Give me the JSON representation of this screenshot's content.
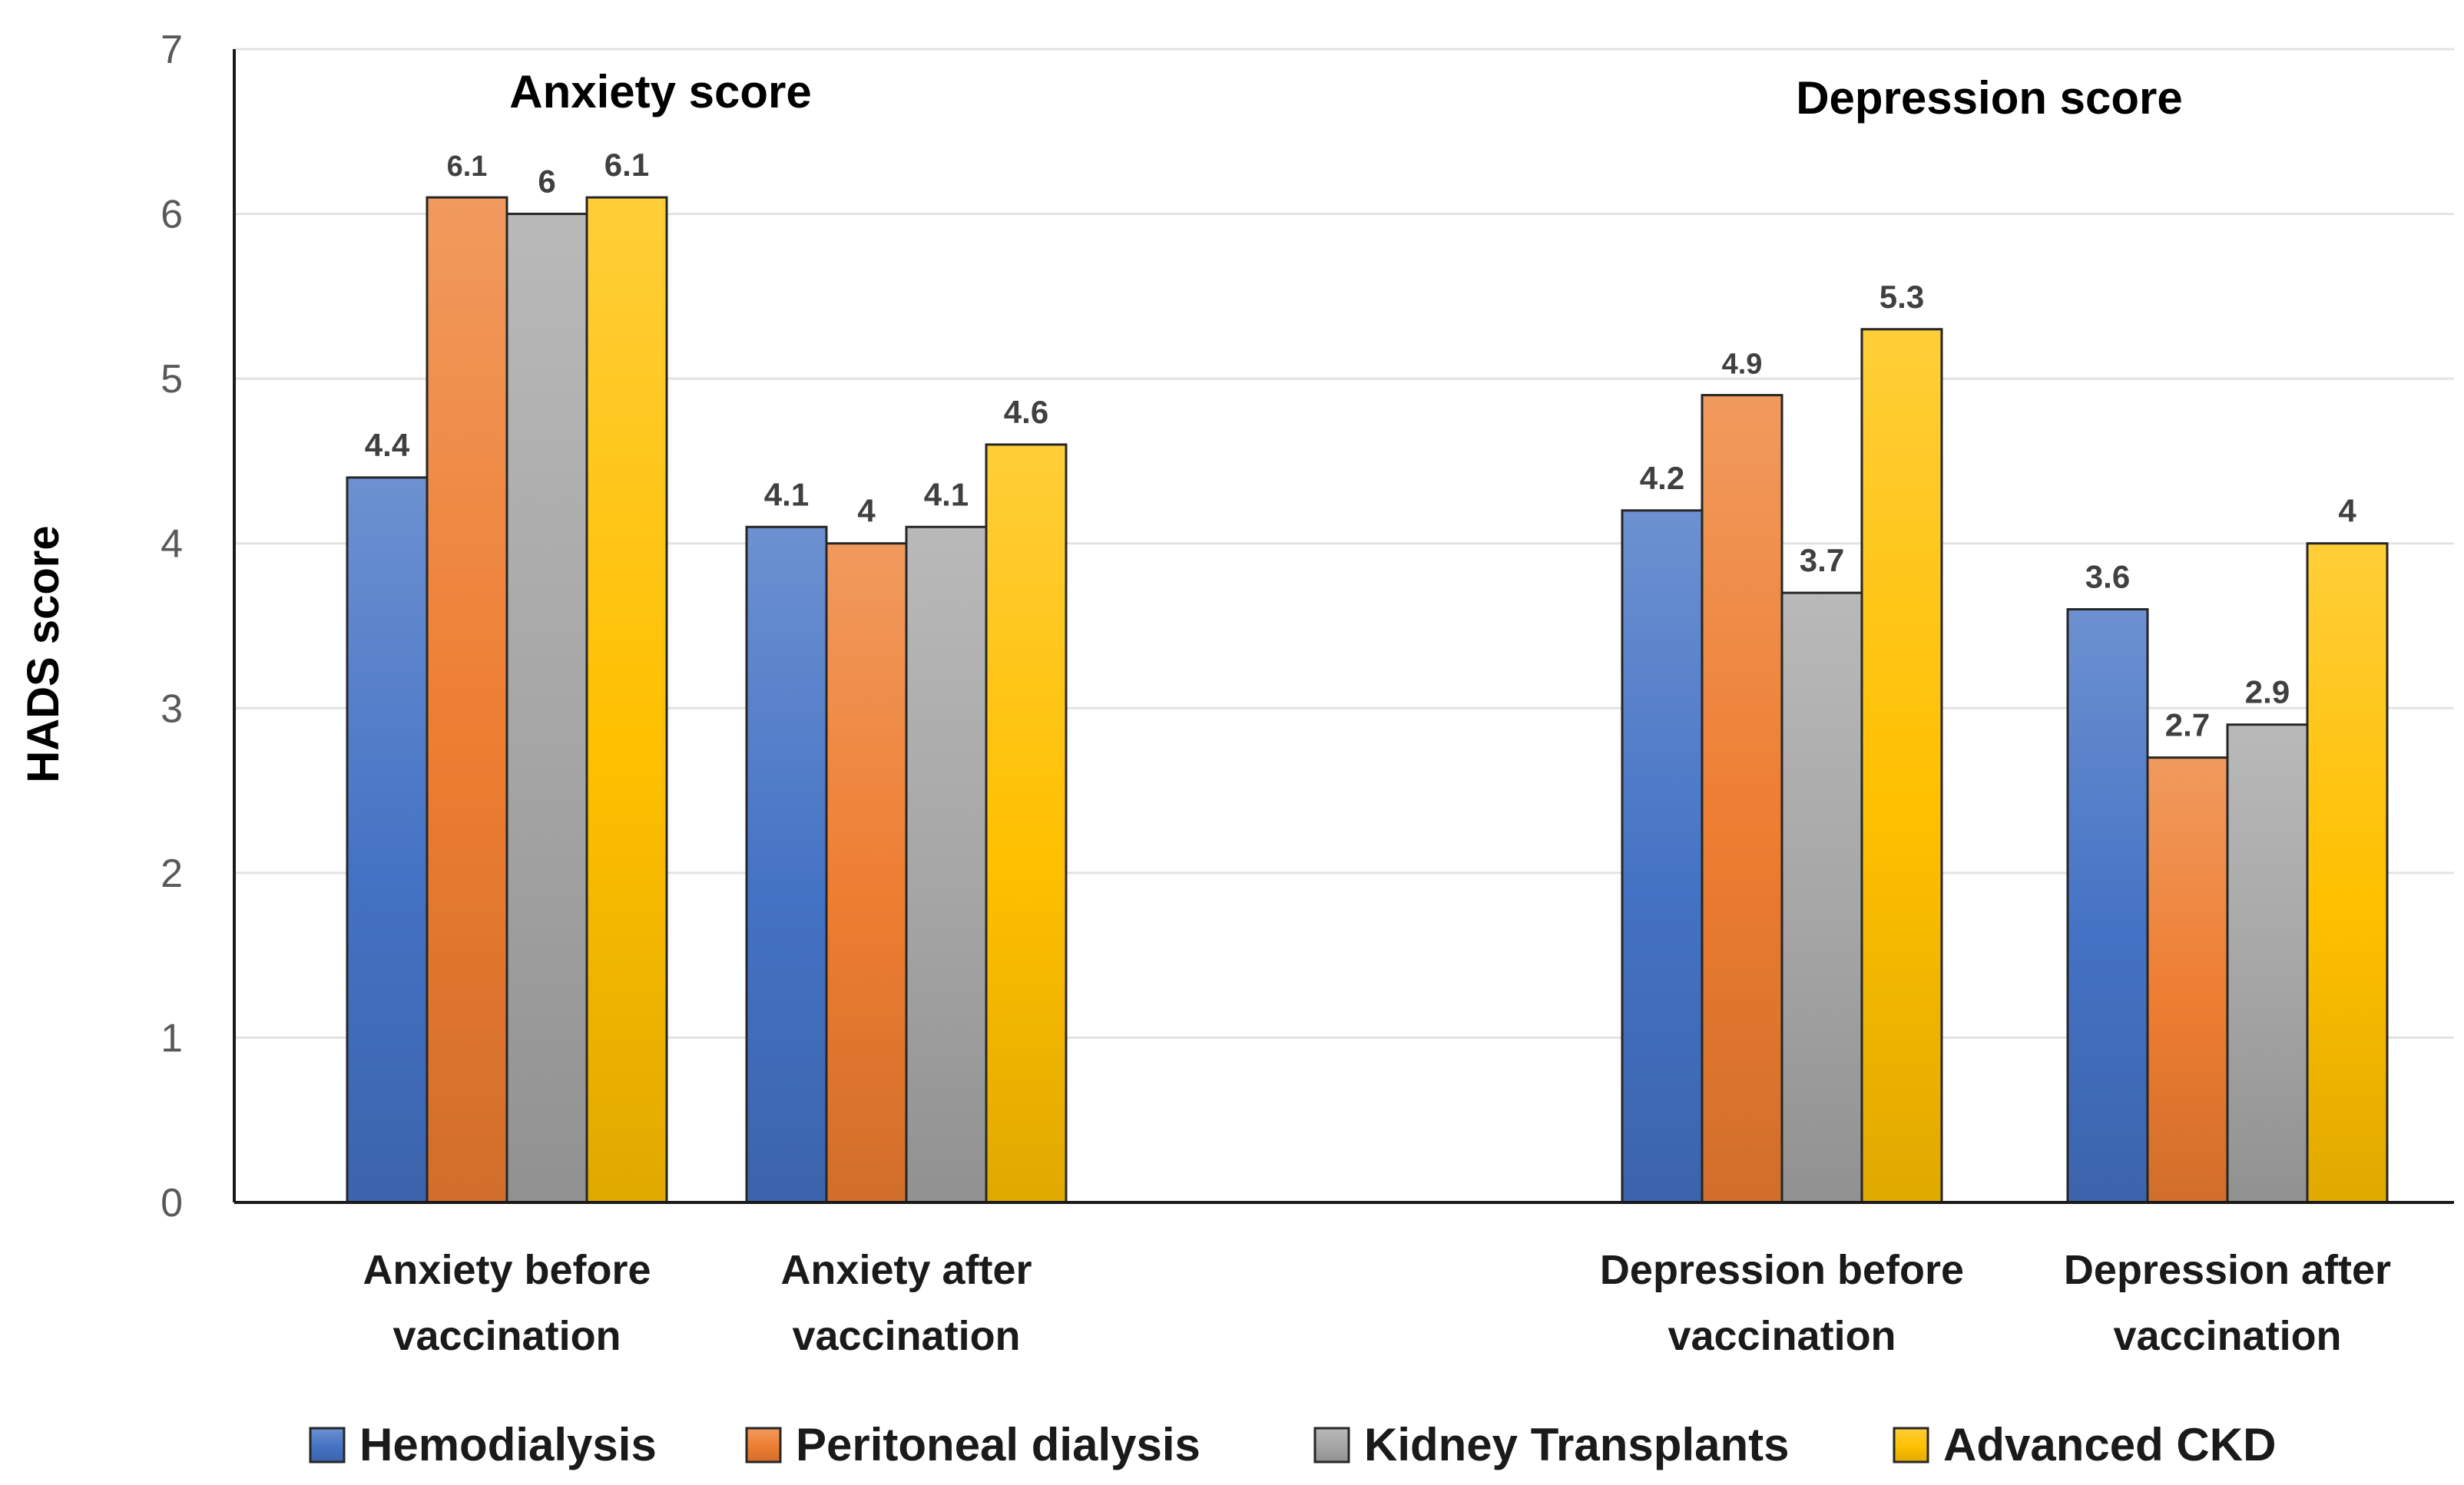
{
  "chart_data": {
    "type": "bar",
    "title": "",
    "xlabel": "",
    "ylabel": "HADS score",
    "ylim": [
      0,
      7
    ],
    "yticks": [
      "0",
      "1",
      "2",
      "3",
      "4",
      "5",
      "6",
      "7"
    ],
    "grid": true,
    "legend_position": "bottom",
    "annotations": [
      {
        "id": "anxiety",
        "text": "Anxiety score"
      },
      {
        "id": "depression",
        "text": "Depression score"
      }
    ],
    "categories": [
      {
        "line1": "Anxiety before",
        "line2": "vaccination"
      },
      {
        "line1": "Anxiety after",
        "line2": "vaccination"
      },
      {
        "line1": "Depression before",
        "line2": "vaccination"
      },
      {
        "line1": "Depression after",
        "line2": "vaccination"
      }
    ],
    "series": [
      {
        "name": "Hemodialysis",
        "color": "#4472c4",
        "values": [
          4.4,
          4.1,
          4.2,
          3.6
        ],
        "labels": [
          "4.4",
          "4.1",
          "4.2",
          "3.6"
        ]
      },
      {
        "name": "Peritoneal dialysis",
        "color": "#ed7d31",
        "values": [
          6.1,
          4.0,
          4.9,
          2.7
        ],
        "labels": [
          "6.1",
          "4",
          "4.9",
          "2.7"
        ]
      },
      {
        "name": "Kidney Transplants",
        "color": "#a5a5a5",
        "values": [
          6.0,
          4.1,
          3.7,
          2.9
        ],
        "labels": [
          "6",
          "4.1",
          "3.7",
          "2.9"
        ]
      },
      {
        "name": "Advanced CKD",
        "color": "#ffc000",
        "values": [
          6.1,
          4.6,
          5.3,
          4.0
        ],
        "labels": [
          "6.1",
          "4.6",
          "5.3",
          "4"
        ]
      }
    ]
  }
}
